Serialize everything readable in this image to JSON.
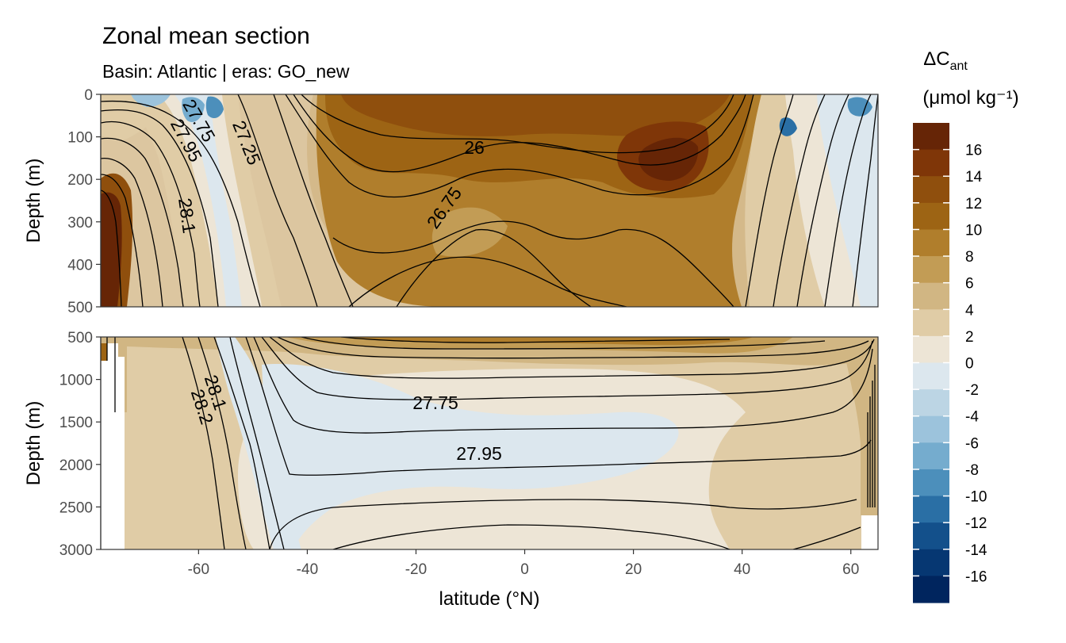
{
  "chart_data": {
    "type": "heatmap",
    "title": "Zonal mean section",
    "subtitle": "Basin: Atlantic | eras: GO_new",
    "xlabel": "latitude (°N)",
    "ylabel": "Depth (m)",
    "xlim": [
      -78,
      65
    ],
    "x_ticks": [
      -60,
      -40,
      -20,
      0,
      20,
      40,
      60
    ],
    "panels": [
      {
        "ylim": [
          0,
          500
        ],
        "y_ticks": [
          0,
          100,
          200,
          300,
          400,
          500
        ]
      },
      {
        "ylim": [
          500,
          3000
        ],
        "y_ticks": [
          500,
          1000,
          1500,
          2000,
          2500,
          3000
        ]
      }
    ],
    "legend": {
      "title_main": "ΔC",
      "title_sub": "ant",
      "unit": "(μmol kg⁻¹)",
      "placement": "right",
      "breaks": [
        "16",
        "14",
        "12",
        "10",
        "8",
        "6",
        "4",
        "2",
        "0",
        "-2",
        "-4",
        "-6",
        "-8",
        "-10",
        "-12",
        "-14",
        "-16"
      ],
      "colors": [
        "#662506",
        "#7f3608",
        "#8f4f0d",
        "#9d6414",
        "#b07e2c",
        "#c29c55",
        "#d1b683",
        "#e0cca6",
        "#ede5d6",
        "#dce7ee",
        "#bcd5e4",
        "#9cc3dc",
        "#75acce",
        "#4c8fbb",
        "#2a6fa5",
        "#13508b",
        "#063772",
        "#00255e"
      ]
    },
    "contour_labels": [
      {
        "panel": 0,
        "text": "27.75"
      },
      {
        "panel": 0,
        "text": "27.95"
      },
      {
        "panel": 0,
        "text": "27.25"
      },
      {
        "panel": 0,
        "text": "28.1"
      },
      {
        "panel": 0,
        "text": "26"
      },
      {
        "panel": 0,
        "text": "26.75"
      },
      {
        "panel": 1,
        "text": "28.1"
      },
      {
        "panel": 1,
        "text": "28.2"
      },
      {
        "panel": 1,
        "text": "27.75"
      },
      {
        "panel": 1,
        "text": "27.95"
      }
    ]
  }
}
